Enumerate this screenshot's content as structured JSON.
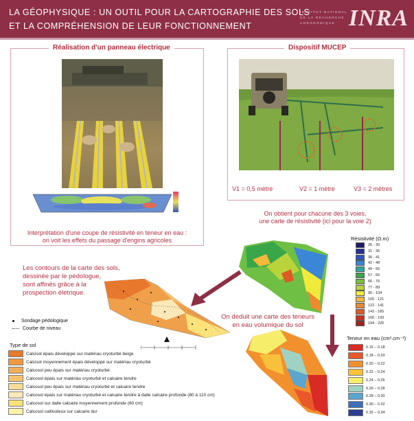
{
  "header": {
    "line1": "LA GÉOPHYSIQUE : UN OUTIL POUR LA CARTOGRAPHIE DES SOLS",
    "line2": "ET LA COMPRÉHENSION DE LEUR FONCTIONNEMENT",
    "logo": "INRA",
    "logo_small_1": "INSTITUT NATIONAL",
    "logo_small_2": "DE LA RECHERCHE",
    "logo_small_3": "AGRONOMIQUE"
  },
  "panel_left": {
    "title": "Réalisation d'un panneau électrique",
    "caption1": "Interprétation d'une coupe de résistivité en teneur en eau :",
    "caption2": "on voit les effets du passage d'engins agricoles"
  },
  "panel_right": {
    "title": "Dispositif MUCEP",
    "v1": "V1 = 0,5 mètre",
    "v2": "V2 = 1 mètre",
    "v3": "V3 = 2 mètres"
  },
  "text_right_1": "On obtient pour chacune des 3 voies,",
  "text_right_2": "une carte de résistivité (ici pour la voie 2)",
  "text_left_1": "Les contours de la carte des sols,",
  "text_left_2": "dessinée par le pédologue,",
  "text_left_3": "sont affinés grâce à la",
  "text_left_4": "prospection élétrique.",
  "text_mid_1": "On déduit une carte des teneurs",
  "text_mid_2": "en eau volumique du sol",
  "map_legend": {
    "sondage": "Sondage pédologique",
    "courbe": "Courbe de niveau",
    "north": "N"
  },
  "resistivity": {
    "title": "Résistivité (Ω.m)",
    "classes": [
      {
        "label": "26 - 30",
        "color": "#1c1c6e"
      },
      {
        "label": "31 - 35",
        "color": "#26309a"
      },
      {
        "label": "36 - 41",
        "color": "#2f55c0"
      },
      {
        "label": "42 - 48",
        "color": "#3b86d6"
      },
      {
        "label": "49 - 56",
        "color": "#2fa7a0"
      },
      {
        "label": "57 - 65",
        "color": "#3aa64a"
      },
      {
        "label": "66 - 76",
        "color": "#76bf3a"
      },
      {
        "label": "77 - 89",
        "color": "#b8d43a"
      },
      {
        "label": "90 - 104",
        "color": "#f2ea3a"
      },
      {
        "label": "105 - 121",
        "color": "#f6b93a"
      },
      {
        "label": "122 - 141",
        "color": "#ef8a2e"
      },
      {
        "label": "142 - 165",
        "color": "#e05a26"
      },
      {
        "label": "166 - 193",
        "color": "#c8341f"
      },
      {
        "label": "194 - 225",
        "color": "#a2211b"
      }
    ]
  },
  "water": {
    "title": "Teneur en eau (cm³.cm⁻³)",
    "classes": [
      {
        "label": "0.16 – 0.18",
        "color": "#d82b25"
      },
      {
        "label": "0.18 – 0.20",
        "color": "#e8582a"
      },
      {
        "label": "0.20 – 0.22",
        "color": "#f2902e"
      },
      {
        "label": "0.22 – 0.24",
        "color": "#f7c23a"
      },
      {
        "label": "0.24 – 0.26",
        "color": "#f6ee6b"
      },
      {
        "label": "0.26 – 0.28",
        "color": "#9fd2c2"
      },
      {
        "label": "0.28 – 0.30",
        "color": "#5aa6cf"
      },
      {
        "label": "0.30 – 0.32",
        "color": "#3e6fb9"
      },
      {
        "label": "0.32 – 0.34",
        "color": "#2d3e92"
      }
    ]
  },
  "soil": {
    "title": "Type de sol",
    "classes": [
      {
        "label": "Calcisol épais développé sur matériau cryoturbé beige",
        "color": "#e8782c"
      },
      {
        "label": "Calcisol moyennement épais développé sur matériau cryoturbé",
        "color": "#f1993e"
      },
      {
        "label": "Calcosol peu épais sur matériau cryoturbé",
        "color": "#f4ad59"
      },
      {
        "label": "Calcosol épais sur matériau cryoturbé et calcaire tendre",
        "color": "#f6c26f"
      },
      {
        "label": "Calcosol peu épais sur matériau cryoturbé et calcaire tendre",
        "color": "#f8dc98"
      },
      {
        "label": "Calcosol épais sur matériau cryoturbé et calcaire tendre à dalle calcaire profonde (80 à 110 cm)",
        "color": "#fae9b8"
      },
      {
        "label": "Calcosol sur dalle calcaire moyennement profonde (60 cm)",
        "color": "#fbe27a"
      },
      {
        "label": "Calcosol caillouteux sur calcaire dur",
        "color": "#fdf2a6"
      }
    ]
  }
}
